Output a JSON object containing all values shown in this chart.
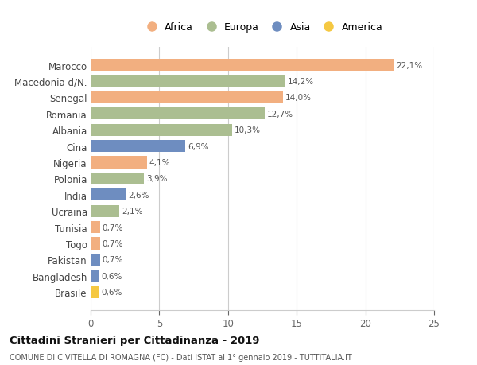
{
  "categories": [
    "Marocco",
    "Macedonia d/N.",
    "Senegal",
    "Romania",
    "Albania",
    "Cina",
    "Nigeria",
    "Polonia",
    "India",
    "Ucraina",
    "Tunisia",
    "Togo",
    "Pakistan",
    "Bangladesh",
    "Brasile"
  ],
  "values": [
    22.1,
    14.2,
    14.0,
    12.7,
    10.3,
    6.9,
    4.1,
    3.9,
    2.6,
    2.1,
    0.7,
    0.7,
    0.7,
    0.6,
    0.6
  ],
  "labels": [
    "22,1%",
    "14,2%",
    "14,0%",
    "12,7%",
    "10,3%",
    "6,9%",
    "4,1%",
    "3,9%",
    "2,6%",
    "2,1%",
    "0,7%",
    "0,7%",
    "0,7%",
    "0,6%",
    "0,6%"
  ],
  "continents": [
    "Africa",
    "Europa",
    "Africa",
    "Europa",
    "Europa",
    "Asia",
    "Africa",
    "Europa",
    "Asia",
    "Europa",
    "Africa",
    "Africa",
    "Asia",
    "Asia",
    "America"
  ],
  "colors": {
    "Africa": "#F2AF80",
    "Europa": "#ABBE91",
    "Asia": "#6E8DC0",
    "America": "#F5C842"
  },
  "legend_order": [
    "Africa",
    "Europa",
    "Asia",
    "America"
  ],
  "xlim": [
    0,
    25
  ],
  "xticks": [
    0,
    5,
    10,
    15,
    20,
    25
  ],
  "title": "Cittadini Stranieri per Cittadinanza - 2019",
  "subtitle": "COMUNE DI CIVITELLA DI ROMAGNA (FC) - Dati ISTAT al 1° gennaio 2019 - TUTTITALIA.IT",
  "background_color": "#ffffff",
  "grid_color": "#cccccc"
}
